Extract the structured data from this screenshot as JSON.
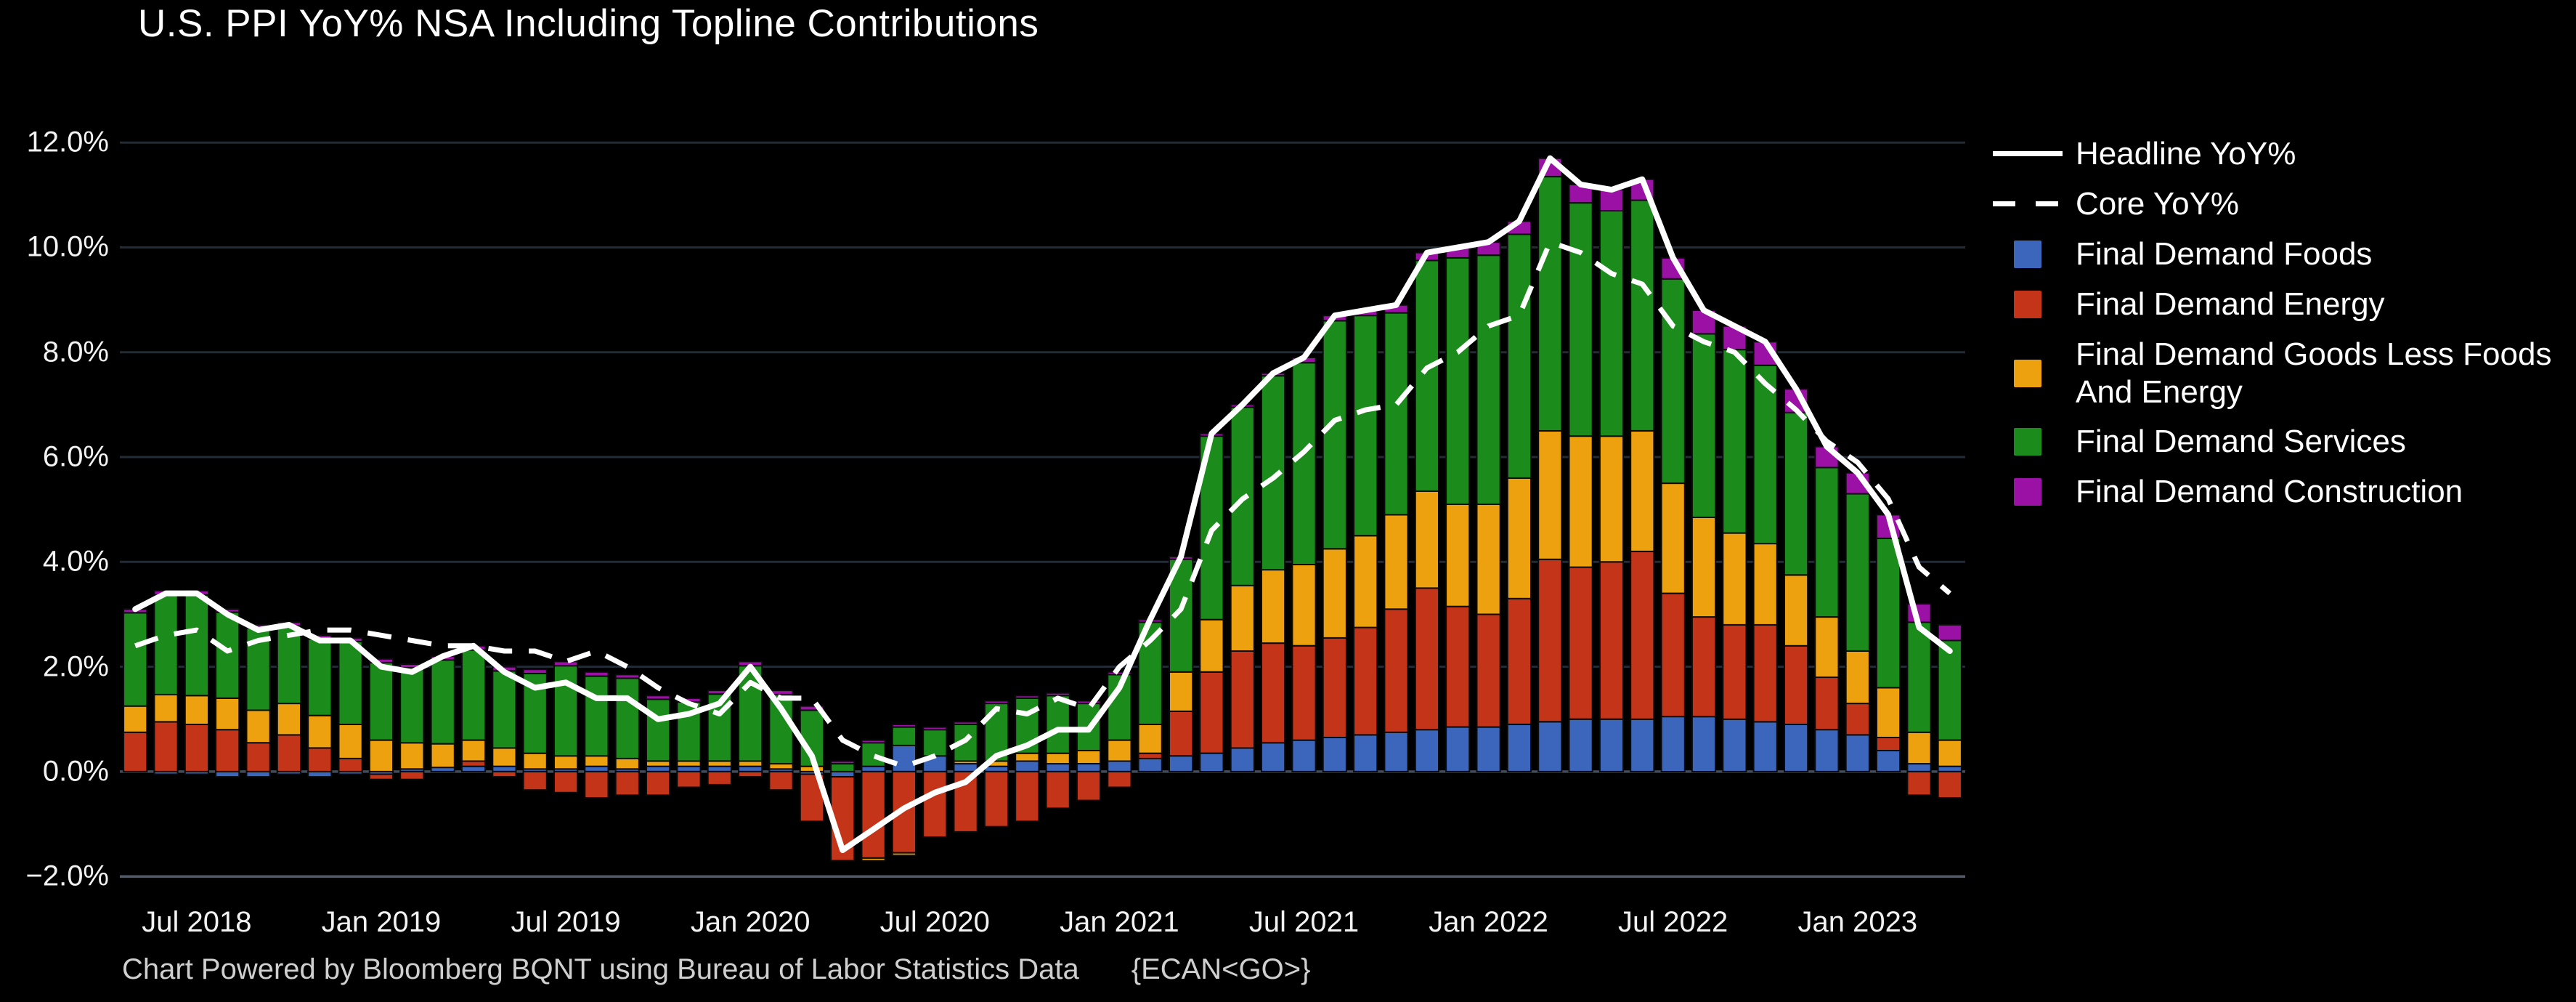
{
  "title": "U.S. PPI YoY% NSA Including Topline Contributions",
  "footer": {
    "text": "Chart Powered by Bloomberg BQNT using Bureau of Labor Statistics Data",
    "code": "{ECAN<GO>}"
  },
  "colors": {
    "background": "#000000",
    "gridline": "#222b36",
    "zero_line": "#434c5a",
    "axis_line": "#515b6a",
    "tick_text": "#f2f2f2",
    "footer_text": "#cfcfcf",
    "foods": "#3c66bc",
    "energy": "#c43418",
    "goods": "#eda10f",
    "services": "#1b8c1b",
    "construction": "#9b10a5",
    "line": "#ffffff"
  },
  "legend": {
    "items": [
      {
        "label": "Headline YoY%",
        "swatch": "line-solid",
        "color": "#ffffff"
      },
      {
        "label": "Core YoY%",
        "swatch": "line-dashed",
        "color": "#ffffff"
      },
      {
        "label": "Final Demand Foods",
        "swatch": "square",
        "color": "#3c66bc"
      },
      {
        "label": "Final Demand Energy",
        "swatch": "square",
        "color": "#c43418"
      },
      {
        "label": "Final Demand Goods Less Foods And Energy",
        "swatch": "square",
        "color": "#eda10f"
      },
      {
        "label": "Final Demand Services",
        "swatch": "square",
        "color": "#1b8c1b"
      },
      {
        "label": "Final Demand Construction",
        "swatch": "square",
        "color": "#9b10a5"
      }
    ]
  },
  "chart_data": {
    "type": "bar",
    "subtype": "stacked-bars-with-overlay-lines",
    "title": "U.S. PPI YoY% NSA Including Topline Contributions",
    "xlabel": "",
    "ylabel": "",
    "grid": "horizontal",
    "legend_position": "right",
    "ylim": [
      -2.33,
      12.64
    ],
    "x": [
      "May 2018",
      "Jun 2018",
      "Jul 2018",
      "Aug 2018",
      "Sep 2018",
      "Oct 2018",
      "Nov 2018",
      "Dec 2018",
      "Jan 2019",
      "Feb 2019",
      "Mar 2019",
      "Apr 2019",
      "May 2019",
      "Jun 2019",
      "Jul 2019",
      "Aug 2019",
      "Sep 2019",
      "Oct 2019",
      "Nov 2019",
      "Dec 2019",
      "Jan 2020",
      "Feb 2020",
      "Mar 2020",
      "Apr 2020",
      "May 2020",
      "Jun 2020",
      "Jul 2020",
      "Aug 2020",
      "Sep 2020",
      "Oct 2020",
      "Nov 2020",
      "Dec 2020",
      "Jan 2021",
      "Feb 2021",
      "Mar 2021",
      "Apr 2021",
      "May 2021",
      "Jun 2021",
      "Jul 2021",
      "Aug 2021",
      "Sep 2021",
      "Oct 2021",
      "Nov 2021",
      "Dec 2021",
      "Jan 2022",
      "Feb 2022",
      "Mar 2022",
      "Apr 2022",
      "May 2022",
      "Jun 2022",
      "Jul 2022",
      "Aug 2022",
      "Sep 2022",
      "Oct 2022",
      "Nov 2022",
      "Dec 2022",
      "Jan 2023",
      "Feb 2023",
      "Mar 2023",
      "Apr 2023"
    ],
    "series": [
      {
        "name": "Final Demand Foods",
        "color": "#3c66bc",
        "values": [
          0.0,
          -0.05,
          -0.05,
          -0.1,
          -0.1,
          -0.05,
          -0.1,
          -0.05,
          -0.05,
          0.05,
          0.08,
          0.1,
          0.1,
          0.05,
          0.05,
          0.1,
          0.05,
          0.1,
          0.1,
          0.1,
          0.1,
          0.05,
          -0.05,
          -0.1,
          0.1,
          0.5,
          0.3,
          0.15,
          0.1,
          0.2,
          0.15,
          0.15,
          0.2,
          0.25,
          0.3,
          0.35,
          0.45,
          0.55,
          0.6,
          0.65,
          0.7,
          0.75,
          0.8,
          0.85,
          0.85,
          0.9,
          0.95,
          1.0,
          1.0,
          1.0,
          1.05,
          1.05,
          1.0,
          0.95,
          0.9,
          0.8,
          0.7,
          0.4,
          0.15,
          0.1
        ]
      },
      {
        "name": "Final Demand Energy",
        "color": "#c43418",
        "values": [
          0.75,
          0.95,
          0.9,
          0.8,
          0.55,
          0.7,
          0.45,
          0.25,
          -0.1,
          -0.15,
          0.0,
          0.1,
          -0.1,
          -0.35,
          -0.4,
          -0.5,
          -0.45,
          -0.45,
          -0.3,
          -0.25,
          -0.1,
          -0.35,
          -0.9,
          -1.6,
          -1.65,
          -1.55,
          -1.25,
          -1.15,
          -1.05,
          -0.95,
          -0.7,
          -0.55,
          -0.3,
          0.1,
          0.85,
          1.55,
          1.85,
          1.9,
          1.8,
          1.9,
          2.05,
          2.35,
          2.7,
          2.3,
          2.15,
          2.4,
          3.1,
          2.9,
          3.0,
          3.2,
          2.35,
          1.9,
          1.8,
          1.85,
          1.5,
          1.0,
          0.6,
          0.25,
          -0.45,
          -0.5
        ]
      },
      {
        "name": "Final Demand Goods Less Foods And Energy",
        "color": "#eda10f",
        "values": [
          0.5,
          0.52,
          0.55,
          0.6,
          0.62,
          0.6,
          0.62,
          0.65,
          0.6,
          0.5,
          0.45,
          0.4,
          0.35,
          0.3,
          0.25,
          0.2,
          0.2,
          0.1,
          0.1,
          0.1,
          0.1,
          0.1,
          0.1,
          0.0,
          -0.05,
          -0.05,
          0.0,
          0.05,
          0.1,
          0.15,
          0.2,
          0.25,
          0.4,
          0.55,
          0.75,
          1.0,
          1.25,
          1.4,
          1.55,
          1.7,
          1.75,
          1.8,
          1.85,
          1.95,
          2.1,
          2.3,
          2.45,
          2.5,
          2.4,
          2.3,
          2.1,
          1.9,
          1.75,
          1.55,
          1.35,
          1.15,
          1.0,
          0.95,
          0.6,
          0.5
        ]
      },
      {
        "name": "Final Demand Services",
        "color": "#1b8c1b",
        "values": [
          1.78,
          1.9,
          1.92,
          1.64,
          1.57,
          1.48,
          1.46,
          1.58,
          1.48,
          1.43,
          1.6,
          1.72,
          1.47,
          1.52,
          1.72,
          1.52,
          1.53,
          1.18,
          1.13,
          1.28,
          1.82,
          1.32,
          1.07,
          0.15,
          0.45,
          0.35,
          0.5,
          0.7,
          1.1,
          1.05,
          1.1,
          0.9,
          1.25,
          1.95,
          2.15,
          3.5,
          3.4,
          3.7,
          3.85,
          4.35,
          4.2,
          3.85,
          4.4,
          4.7,
          4.75,
          4.65,
          4.85,
          4.45,
          4.3,
          4.4,
          3.9,
          3.5,
          3.5,
          3.4,
          3.1,
          2.85,
          3.0,
          2.85,
          2.1,
          1.9
        ]
      },
      {
        "name": "Final Demand Construction",
        "color": "#9b10a5",
        "values": [
          0.07,
          0.08,
          0.08,
          0.06,
          0.06,
          0.07,
          0.07,
          0.07,
          0.07,
          0.07,
          0.07,
          0.08,
          0.08,
          0.08,
          0.08,
          0.08,
          0.07,
          0.07,
          0.07,
          0.07,
          0.08,
          0.08,
          0.08,
          0.05,
          0.05,
          0.05,
          0.05,
          0.05,
          0.05,
          0.05,
          0.05,
          0.05,
          0.05,
          0.05,
          0.05,
          0.05,
          0.05,
          0.05,
          0.1,
          0.1,
          0.1,
          0.15,
          0.15,
          0.2,
          0.25,
          0.25,
          0.35,
          0.35,
          0.4,
          0.4,
          0.4,
          0.45,
          0.45,
          0.45,
          0.45,
          0.4,
          0.4,
          0.45,
          0.35,
          0.3
        ]
      }
    ],
    "lines": [
      {
        "name": "Headline YoY%",
        "style": "solid",
        "color": "#ffffff",
        "values": [
          3.1,
          3.4,
          3.4,
          3.0,
          2.7,
          2.8,
          2.5,
          2.5,
          2.0,
          1.9,
          2.2,
          2.4,
          1.9,
          1.6,
          1.7,
          1.4,
          1.4,
          1.0,
          1.1,
          1.3,
          2.0,
          1.2,
          0.3,
          -1.5,
          -1.1,
          -0.7,
          -0.4,
          -0.2,
          0.3,
          0.5,
          0.8,
          0.8,
          1.6,
          2.9,
          4.1,
          6.45,
          7.0,
          7.6,
          7.9,
          8.7,
          8.8,
          8.9,
          9.9,
          10.0,
          10.1,
          10.5,
          11.7,
          11.2,
          11.1,
          11.3,
          9.8,
          8.8,
          8.5,
          8.2,
          7.3,
          6.2,
          5.7,
          4.9,
          2.75,
          2.3
        ]
      },
      {
        "name": "Core YoY%",
        "style": "dashed",
        "color": "#ffffff",
        "values": [
          2.4,
          2.6,
          2.7,
          2.3,
          2.5,
          2.6,
          2.7,
          2.7,
          2.6,
          2.5,
          2.4,
          2.4,
          2.3,
          2.3,
          2.1,
          2.3,
          2.0,
          1.6,
          1.3,
          1.1,
          1.7,
          1.4,
          1.4,
          0.6,
          0.3,
          0.1,
          0.3,
          0.6,
          1.2,
          1.1,
          1.4,
          1.2,
          2.0,
          2.5,
          3.1,
          4.6,
          5.2,
          5.6,
          6.1,
          6.7,
          6.9,
          7.0,
          7.7,
          8.0,
          8.5,
          8.7,
          10.1,
          9.9,
          9.5,
          9.3,
          8.5,
          8.2,
          8.0,
          7.4,
          6.9,
          6.3,
          5.9,
          5.2,
          3.9,
          3.4
        ]
      }
    ],
    "y_ticks": [
      {
        "label": "12.0%",
        "value": 12
      },
      {
        "label": "10.0%",
        "value": 10
      },
      {
        "label": "8.0%",
        "value": 8
      },
      {
        "label": "6.0%",
        "value": 6
      },
      {
        "label": "4.0%",
        "value": 4
      },
      {
        "label": "2.0%",
        "value": 2
      },
      {
        "label": "0.0%",
        "value": 0
      },
      {
        "label": "−2.0%",
        "value": -2
      }
    ],
    "x_ticks": [
      {
        "label": "Jul 2018",
        "month_index": 2
      },
      {
        "label": "Jan 2019",
        "month_index": 8
      },
      {
        "label": "Jul 2019",
        "month_index": 14
      },
      {
        "label": "Jan 2020",
        "month_index": 20
      },
      {
        "label": "Jul 2020",
        "month_index": 26
      },
      {
        "label": "Jan 2021",
        "month_index": 32
      },
      {
        "label": "Jul 2021",
        "month_index": 38
      },
      {
        "label": "Jan 2022",
        "month_index": 44
      },
      {
        "label": "Jul 2022",
        "month_index": 50
      },
      {
        "label": "Jan 2023",
        "month_index": 56
      }
    ]
  }
}
